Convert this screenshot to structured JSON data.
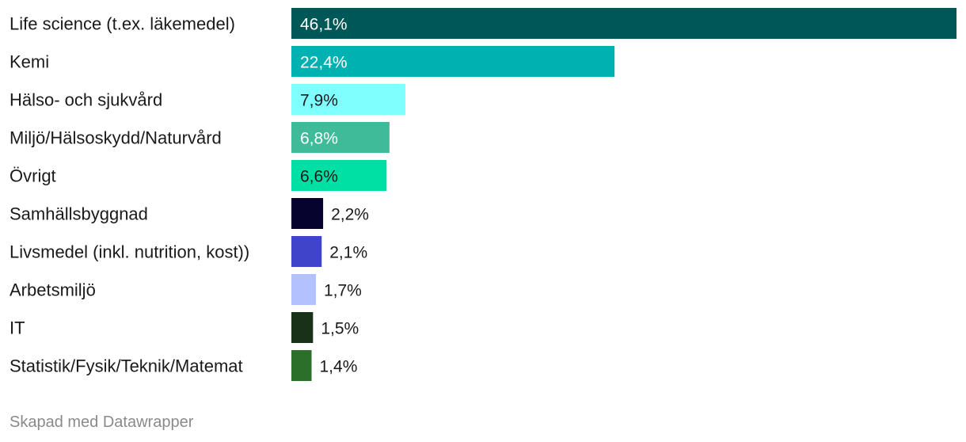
{
  "chart_data": {
    "type": "bar",
    "orientation": "horizontal",
    "categories": [
      "Life science (t.ex. läkemedel)",
      "Kemi",
      "Hälso- och sjukvård",
      "Miljö/Hälsoskydd/Naturvård",
      "Övrigt",
      "Samhällsbyggnad",
      "Livsmedel (inkl. nutrition, kost))",
      "Arbetsmiljö",
      "IT",
      "Statistik/Fysik/Teknik/Matemat"
    ],
    "values": [
      46.1,
      22.4,
      7.9,
      6.8,
      6.6,
      2.2,
      2.1,
      1.7,
      1.5,
      1.4
    ],
    "value_labels": [
      "46,1%",
      "22,4%",
      "7,9%",
      "6,8%",
      "6,6%",
      "2,2%",
      "2,1%",
      "1,7%",
      "1,5%",
      "1,4%"
    ],
    "colors": [
      "#005757",
      "#00b1b1",
      "#80ffff",
      "#3fbb99",
      "#00e0a4",
      "#06032e",
      "#4044cb",
      "#b3c1ff",
      "#193118",
      "#2b6f2b"
    ],
    "label_colors": [
      "#ffffff",
      "#ffffff",
      "#1a1a1a",
      "#ffffff",
      "#1a1a1a",
      "#1a1a1a",
      "#1a1a1a",
      "#1a1a1a",
      "#1a1a1a",
      "#1a1a1a"
    ],
    "xlim": [
      0,
      46.1
    ],
    "unit": "%",
    "grid": false,
    "legend": "none"
  },
  "footer": {
    "credit": "Skapad med Datawrapper"
  }
}
